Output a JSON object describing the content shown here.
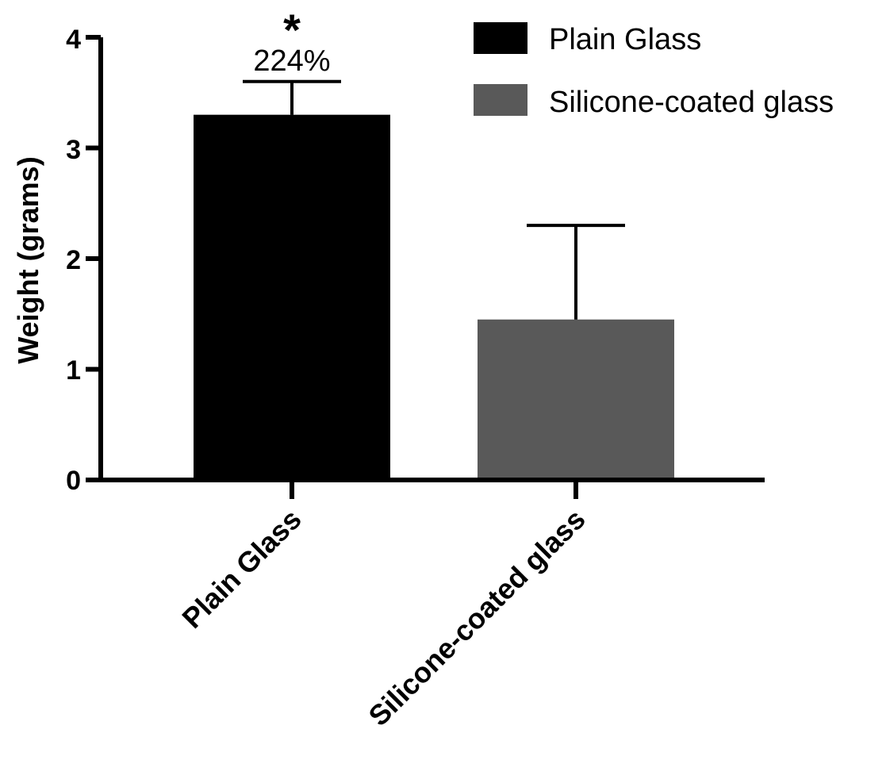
{
  "chart_data": {
    "type": "bar",
    "title": "",
    "xlabel": "",
    "ylabel": "Weight (grams)",
    "ylim": [
      0,
      4
    ],
    "yticks": [
      "0",
      "1",
      "2",
      "3",
      "4"
    ],
    "categories": [
      "Plain Glass",
      "Silicone-coated glass"
    ],
    "values": [
      3.3,
      1.45
    ],
    "error_upper": [
      0.3,
      0.85
    ],
    "colors": [
      "#000000",
      "#595959"
    ],
    "legend": {
      "placement": "top-right",
      "entries": [
        {
          "label": "Plain Glass",
          "color": "#000000"
        },
        {
          "label": "Silicone-coated glass",
          "color": "#595959"
        }
      ]
    },
    "annotations": [
      {
        "category": "Plain Glass",
        "symbol": "*",
        "text": "224%"
      }
    ],
    "grid": false
  }
}
